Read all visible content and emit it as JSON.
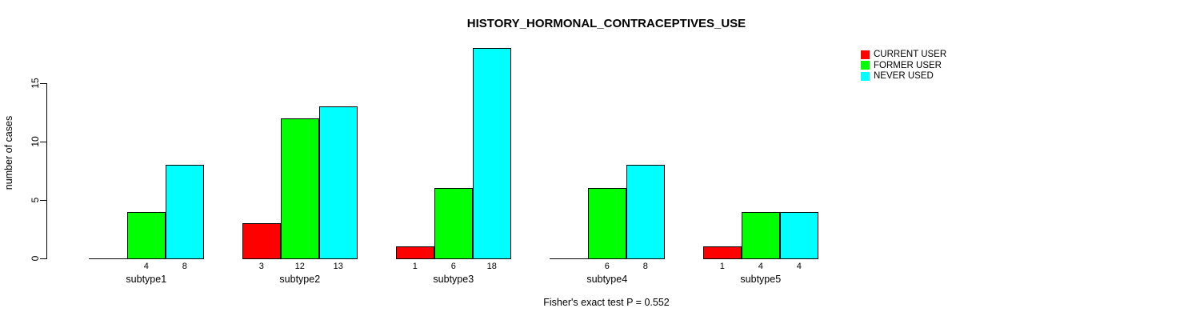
{
  "chart_data": {
    "type": "bar",
    "title": "HISTORY_HORMONAL_CONTRACEPTIVES_USE",
    "xlabel": "",
    "ylabel": "number of cases",
    "categories": [
      "subtype1",
      "subtype2",
      "subtype3",
      "subtype4",
      "subtype5"
    ],
    "series": [
      {
        "name": "CURRENT USER",
        "color": "#FF0000",
        "values": [
          0,
          3,
          1,
          0,
          1
        ]
      },
      {
        "name": "FORMER USER",
        "color": "#00FF00",
        "values": [
          4,
          12,
          6,
          6,
          4
        ]
      },
      {
        "name": "NEVER USED",
        "color": "#00FFFF",
        "values": [
          8,
          13,
          18,
          8,
          4
        ]
      }
    ],
    "bar_value_labels": "values shown under each bar, zeros omitted",
    "yticks": [
      0,
      5,
      10,
      15
    ],
    "ylim": [
      0,
      19
    ],
    "grid": false,
    "legend_position": "top-right",
    "annotation": "Fisher's exact test P = 0.552"
  }
}
